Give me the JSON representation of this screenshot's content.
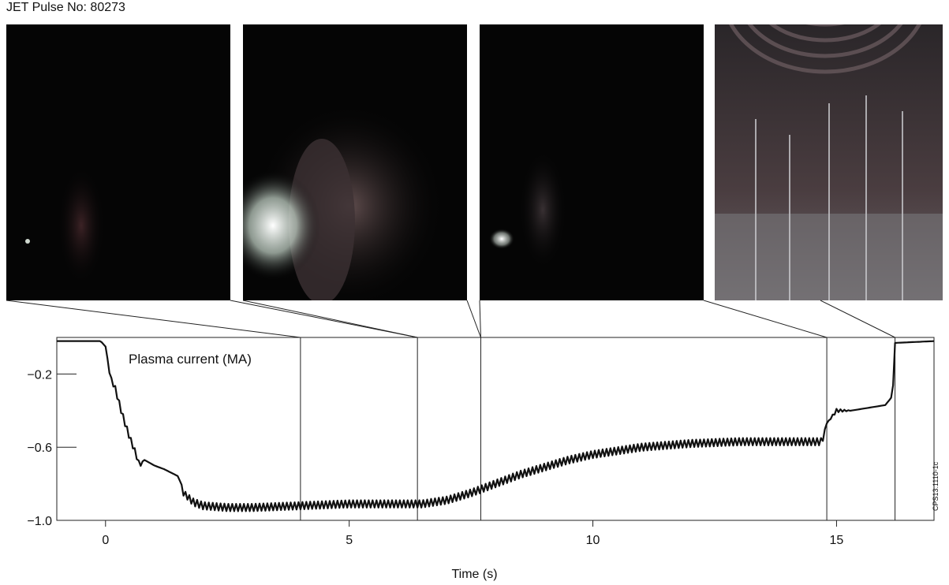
{
  "header": {
    "title": "JET Pulse No: 80273"
  },
  "figure_code": "CPS13.1110-1c",
  "frames": [
    {
      "name": "camera-frame-1",
      "transition_time": 4.0
    },
    {
      "name": "camera-frame-2",
      "transition_time": 6.4
    },
    {
      "name": "camera-frame-3",
      "transition_time": 7.7
    },
    {
      "name": "camera-frame-4",
      "transition_time": 14.8,
      "second_time": 16.2
    }
  ],
  "chart_data": {
    "type": "line",
    "title": "",
    "annotation": "Plasma current (MA)",
    "xlabel": "Time (s)",
    "ylabel": "",
    "xlim": [
      -1.0,
      17.0
    ],
    "ylim": [
      -1.0,
      0.0
    ],
    "xticks": [
      0,
      5,
      10,
      15
    ],
    "yticks": [
      -0.2,
      -0.6,
      -1.0
    ],
    "ytick_labels": [
      "−0.2",
      "−0.6",
      "−1.0"
    ],
    "markers": [
      4.0,
      6.4,
      7.7,
      14.8,
      16.2
    ],
    "series": [
      {
        "x": [
          -1.0,
          -0.1,
          0.0,
          0.1,
          0.2,
          0.3,
          0.4,
          0.5,
          0.6,
          0.7,
          0.8,
          1.0,
          1.2,
          1.5,
          1.6,
          1.8,
          2.0,
          2.5,
          3.0,
          4.0,
          5.0,
          6.0,
          6.5,
          7.0,
          7.5,
          8.0,
          8.5,
          9.0,
          9.5,
          10.0,
          11.0,
          12.0,
          13.0,
          14.0,
          14.7,
          14.8,
          15.0,
          15.3,
          16.0,
          16.15,
          16.2,
          17.0
        ],
        "y": [
          -0.02,
          -0.02,
          -0.05,
          -0.22,
          -0.28,
          -0.38,
          -0.47,
          -0.55,
          -0.62,
          -0.7,
          -0.67,
          -0.7,
          -0.72,
          -0.76,
          -0.85,
          -0.9,
          -0.92,
          -0.93,
          -0.93,
          -0.92,
          -0.91,
          -0.91,
          -0.91,
          -0.89,
          -0.85,
          -0.8,
          -0.75,
          -0.71,
          -0.67,
          -0.64,
          -0.6,
          -0.58,
          -0.57,
          -0.57,
          -0.57,
          -0.47,
          -0.4,
          -0.4,
          -0.37,
          -0.32,
          -0.03,
          -0.02
        ],
        "ripple": [
          0,
          0,
          0,
          0.01,
          0.015,
          0.015,
          0.015,
          0.015,
          0.015,
          0.01,
          0,
          0,
          0,
          0,
          0.015,
          0.02,
          0.02,
          0.02,
          0.02,
          0.02,
          0.02,
          0.02,
          0.02,
          0.02,
          0.02,
          0.02,
          0.02,
          0.02,
          0.02,
          0.02,
          0.02,
          0.02,
          0.02,
          0.02,
          0.02,
          0,
          0.01,
          0,
          0,
          0,
          0,
          0
        ]
      }
    ]
  }
}
